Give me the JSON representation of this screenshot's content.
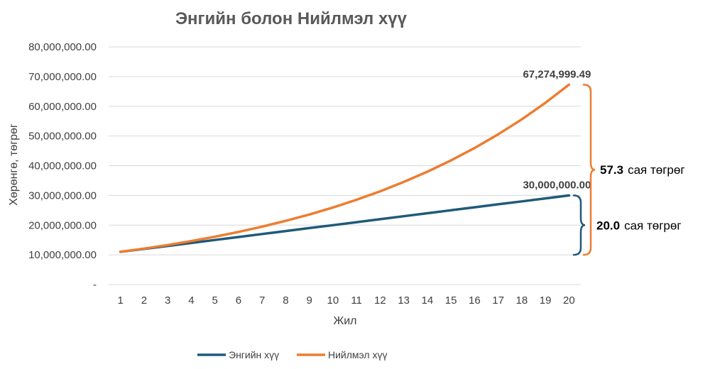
{
  "chart_data": {
    "type": "line",
    "title": "Энгийн болон Нийлмэл хүү",
    "xlabel": "Жил",
    "ylabel": "Хөрөнгө, төгрөг",
    "x": [
      1,
      2,
      3,
      4,
      5,
      6,
      7,
      8,
      9,
      10,
      11,
      12,
      13,
      14,
      15,
      16,
      17,
      18,
      19,
      20
    ],
    "ylim": [
      0,
      80000000
    ],
    "yticks": [
      {
        "value": 0,
        "label": "-"
      },
      {
        "value": 10000000,
        "label": "10,000,000.00"
      },
      {
        "value": 20000000,
        "label": "20,000,000.00"
      },
      {
        "value": 30000000,
        "label": "30,000,000.00"
      },
      {
        "value": 40000000,
        "label": "40,000,000.00"
      },
      {
        "value": 50000000,
        "label": "50,000,000.00"
      },
      {
        "value": 60000000,
        "label": "60,000,000.00"
      },
      {
        "value": 70000000,
        "label": "70,000,000.00"
      },
      {
        "value": 80000000,
        "label": "80,000,000.00"
      }
    ],
    "grid": true,
    "legend": "bottom",
    "series": [
      {
        "name": "Энгийн хүү",
        "color": "#1f5a7a",
        "values": [
          11000000,
          12000000,
          13000000,
          14000000,
          15000000,
          16000000,
          17000000,
          18000000,
          19000000,
          20000000,
          21000000,
          22000000,
          23000000,
          24000000,
          25000000,
          26000000,
          27000000,
          28000000,
          29000000,
          30000000
        ],
        "end_label": "30,000,000.00"
      },
      {
        "name": "Нийлмэл хүү",
        "color": "#ed7d31",
        "values": [
          11000000,
          12100000,
          13310000,
          14641000,
          16105100,
          17715610,
          19487171,
          21435888,
          23579477,
          25937425,
          28531167,
          31384284,
          34522712,
          37974983,
          41772482,
          45949730,
          50544703,
          55599173,
          61159090,
          67274999.49
        ],
        "end_label": "67,274,999.49"
      }
    ],
    "annotations": [
      {
        "value": "57.3",
        "unit": "сая төгрөг",
        "color": "#ed7d31",
        "from": 10000000,
        "to": 67274999.49
      },
      {
        "value": "20.0",
        "unit": "сая төгрөг",
        "color": "#1f5a7a",
        "from": 10000000,
        "to": 30000000
      }
    ]
  }
}
